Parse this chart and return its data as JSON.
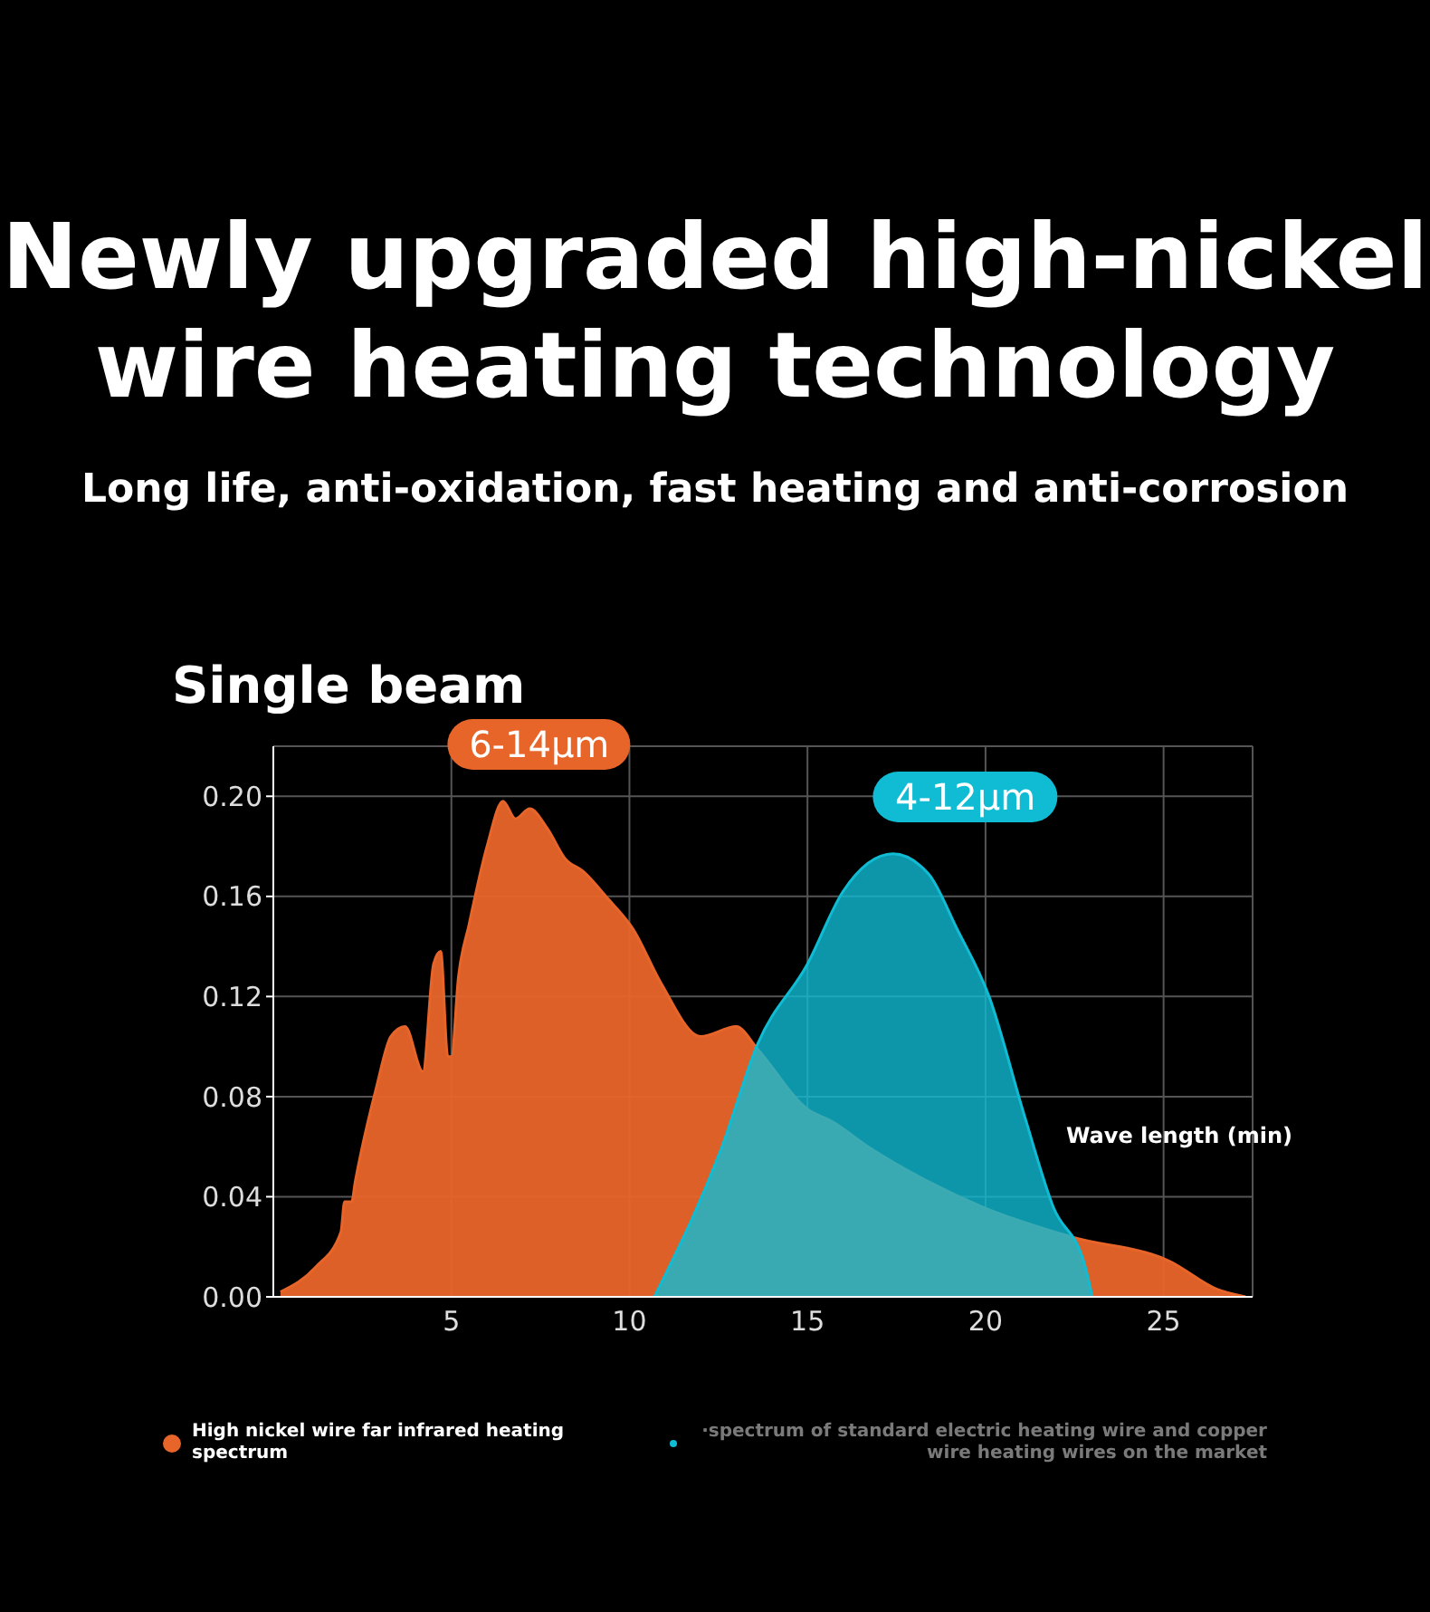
{
  "chart_data": {
    "type": "area",
    "title": "Newly upgraded high-nickel wire heating technology",
    "subtitle": "Long life, anti-oxidation, fast heating and anti-corrosion",
    "ylabel": "Single beam",
    "xlabel": "Wave length (min)",
    "annotations": [
      "6-14μm",
      "4-12μm"
    ],
    "series": [
      {
        "name": "High nickel wire far infrared heating spectrum",
        "color": "#e8652a",
        "x": [
          0.2,
          1.2,
          1.9,
          2.0,
          2.2,
          2.3,
          2.9,
          3.3,
          3.7,
          4.2,
          4.5,
          4.7,
          4.9,
          5.0,
          5.2,
          5.5,
          6.0,
          6.45,
          6.8,
          7.2,
          7.7,
          8.2,
          8.7,
          9.4,
          10.1,
          10.9,
          12.0,
          13.0,
          13.6,
          15.0,
          15.7,
          16.7,
          18.4,
          19.9,
          22.4,
          25.2,
          26.5,
          27.3
        ],
        "values": [
          0.002,
          0.012,
          0.026,
          0.038,
          0.038,
          0.046,
          0.084,
          0.104,
          0.108,
          0.09,
          0.133,
          0.138,
          0.096,
          0.096,
          0.128,
          0.149,
          0.18,
          0.198,
          0.191,
          0.195,
          0.187,
          0.175,
          0.17,
          0.159,
          0.147,
          0.125,
          0.104,
          0.108,
          0.099,
          0.075,
          0.07,
          0.06,
          0.046,
          0.036,
          0.024,
          0.014,
          0.003,
          0
        ]
      },
      {
        "name": "·spectrum of standard electric heating wire and copper wire heating wires on the market",
        "color": "#10bcd4",
        "x": [
          10.7,
          12.6,
          13.6,
          15.0,
          16.0,
          17.4,
          18.4,
          19.2,
          20.1,
          21.1,
          21.9,
          22.8,
          23.0
        ],
        "values": [
          0,
          0.06,
          0.101,
          0.133,
          0.162,
          0.177,
          0.169,
          0.147,
          0.12,
          0.072,
          0.036,
          0.012,
          0
        ]
      }
    ],
    "xlim": [
      0,
      27.5
    ],
    "xticks": [
      5,
      10,
      15,
      20,
      25
    ],
    "ylim": [
      0,
      0.22
    ],
    "yticks": [
      {
        "value": 0,
        "label": "0.00"
      },
      {
        "value": 0.04,
        "label": "0.04"
      },
      {
        "value": 0.08,
        "label": "0.08"
      },
      {
        "value": 0.12,
        "label": "0.12"
      },
      {
        "value": 0.16,
        "label": "0.16"
      },
      {
        "value": 0.2,
        "label": "0.20"
      }
    ],
    "grid": true,
    "legend": "bottom"
  }
}
